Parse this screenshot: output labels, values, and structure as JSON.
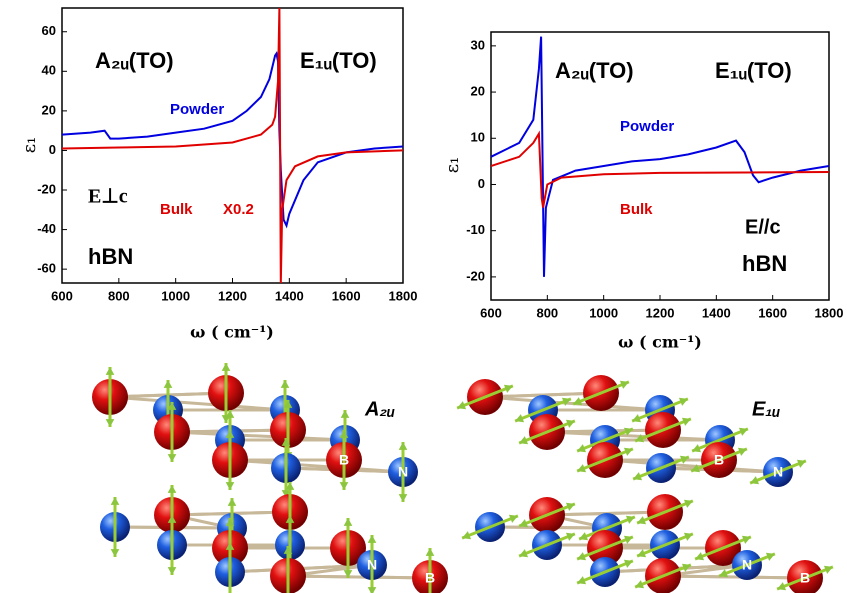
{
  "chart_data": [
    {
      "type": "line",
      "y_label": "ε₁",
      "x_label": "ω ( cm⁻¹)",
      "xlim": [
        600,
        1800
      ],
      "ylim": [
        -67,
        72
      ],
      "xticks": [
        600,
        800,
        1000,
        1200,
        1400,
        1600,
        1800
      ],
      "yticks": [
        -60,
        -40,
        -20,
        0,
        20,
        40,
        60
      ],
      "series": [
        {
          "name": "Powder",
          "color": "#0000e0",
          "x": [
            600,
            700,
            750,
            770,
            800,
            900,
            1000,
            1100,
            1200,
            1250,
            1300,
            1330,
            1350,
            1355,
            1360,
            1365,
            1370,
            1380,
            1390,
            1400,
            1450,
            1500,
            1600,
            1700,
            1800
          ],
          "values": [
            8,
            9,
            10,
            6,
            6,
            7,
            9,
            11,
            15,
            20,
            27,
            36,
            48,
            49,
            45,
            10,
            -10,
            -35,
            -38,
            -32,
            -15,
            -6,
            -1,
            1,
            2
          ]
        },
        {
          "name": "Bulk",
          "color": "#e00000",
          "x": [
            600,
            800,
            1000,
            1200,
            1300,
            1340,
            1350,
            1360,
            1365,
            1370,
            1375,
            1390,
            1420,
            1500,
            1600,
            1800
          ],
          "values": [
            1,
            1.5,
            2,
            4,
            8,
            13,
            17,
            35,
            72,
            -67,
            -30,
            -15,
            -8,
            -3,
            -1,
            0
          ]
        }
      ],
      "annotations": [
        {
          "text": "A₂ᵤ(TO)",
          "color": "#000000"
        },
        {
          "text": "E₁ᵤ(TO)",
          "color": "#000000"
        },
        {
          "text": "Powder",
          "color": "#0000e0"
        },
        {
          "text": "E⊥c",
          "color": "#000000"
        },
        {
          "text": "Bulk",
          "color": "#e00000"
        },
        {
          "text": "X0.2",
          "color": "#e00000"
        },
        {
          "text": "hBN",
          "color": "#000000"
        }
      ]
    },
    {
      "type": "line",
      "y_label": "ε₁",
      "x_label": "ω ( cm⁻¹)",
      "xlim": [
        600,
        1800
      ],
      "ylim": [
        -25,
        33
      ],
      "xticks": [
        600,
        800,
        1000,
        1200,
        1400,
        1600,
        1800
      ],
      "yticks": [
        -20,
        -10,
        0,
        10,
        20,
        30
      ],
      "series": [
        {
          "name": "Powder",
          "color": "#0000e0",
          "x": [
            600,
            700,
            750,
            770,
            778,
            782,
            788,
            795,
            820,
            900,
            1000,
            1100,
            1200,
            1300,
            1400,
            1470,
            1500,
            1530,
            1550,
            1600,
            1700,
            1800
          ],
          "values": [
            6,
            9,
            14,
            25,
            32,
            10,
            -20,
            -5,
            1,
            3,
            4,
            5,
            5.5,
            6.5,
            8,
            9.5,
            7,
            2,
            0.5,
            1.5,
            3,
            4
          ]
        },
        {
          "name": "Bulk",
          "color": "#e00000",
          "x": [
            600,
            700,
            750,
            770,
            780,
            785,
            800,
            850,
            1000,
            1200,
            1500,
            1800
          ],
          "values": [
            4,
            6,
            9,
            11,
            -3,
            -5,
            0,
            1.5,
            2.2,
            2.5,
            2.6,
            2.7
          ]
        }
      ],
      "annotations": [
        {
          "text": "A₂ᵤ(TO)",
          "color": "#000000"
        },
        {
          "text": "E₁ᵤ(TO)",
          "color": "#000000"
        },
        {
          "text": "Powder",
          "color": "#0000e0"
        },
        {
          "text": "Bulk",
          "color": "#e00000"
        },
        {
          "text": "E//c",
          "color": "#000000"
        },
        {
          "text": "hBN",
          "color": "#000000"
        }
      ]
    }
  ],
  "illustrations": [
    {
      "label": "A₂ᵤ",
      "atom_labels": [
        "B",
        "N",
        "N",
        "B"
      ]
    },
    {
      "label": "E₁ᵤ",
      "atom_labels": [
        "B",
        "N",
        "N",
        "B"
      ]
    }
  ]
}
